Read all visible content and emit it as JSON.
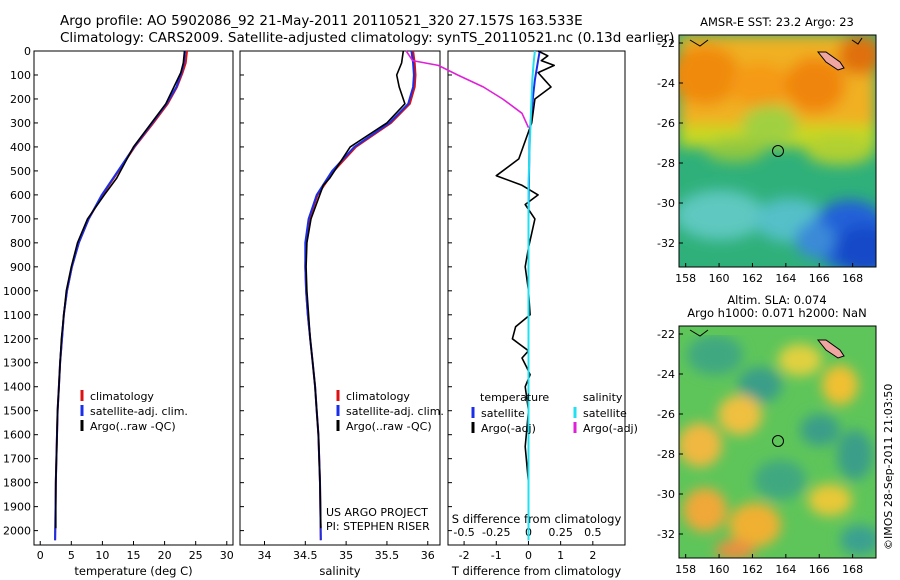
{
  "header": {
    "line1": "Argo profile: AO 5902086_92 21-May-2011 20110521_320 27.157S 163.533E",
    "line2": "Climatology: CARS2009. Satellite-adjusted climatology: synTS_20110521.nc (0.13d earlier)"
  },
  "watermark": "©IMOS 28-Sep-2011 21:03:50",
  "colors": {
    "climatology": "#dd1111",
    "satellite": "#1a2ee8",
    "argo": "#000000",
    "sat_salinity": "#22e0f0",
    "argo_salinity_adj": "#e020d8"
  },
  "chart_data": [
    {
      "type": "line",
      "name": "temperature-profile",
      "xlabel": "temperature (deg C)",
      "xlim": [
        -1,
        31
      ],
      "ylim": [
        2060,
        0
      ],
      "xticks": [
        0,
        5,
        10,
        15,
        20,
        25,
        30
      ],
      "yticks": [
        0,
        100,
        200,
        300,
        400,
        500,
        600,
        700,
        800,
        900,
        1000,
        1100,
        1200,
        1300,
        1400,
        1500,
        1600,
        1700,
        1800,
        1900,
        2000
      ],
      "legend": [
        "climatology",
        "satellite-adj. clim.",
        "Argo(..raw -QC)"
      ],
      "series": [
        {
          "name": "climatology",
          "color": "#dd1111",
          "x": [
            23.6,
            23.4,
            22.9,
            22.0,
            20.5,
            18.2,
            15.2,
            12.6,
            10.0,
            7.8,
            6.2,
            5.1,
            4.3,
            3.8,
            3.5,
            3.2,
            3.0,
            2.8,
            2.7,
            2.6,
            2.5,
            2.4
          ],
          "y": [
            0,
            50,
            90,
            150,
            220,
            300,
            400,
            500,
            600,
            700,
            800,
            900,
            1000,
            1100,
            1200,
            1300,
            1400,
            1500,
            1600,
            1700,
            1800,
            2040
          ]
        },
        {
          "name": "satellite-adj. clim.",
          "color": "#1a2ee8",
          "x": [
            23.3,
            23.1,
            22.7,
            21.9,
            20.3,
            18.0,
            15.1,
            12.5,
            9.9,
            7.8,
            6.2,
            5.1,
            4.3,
            3.8,
            3.5,
            3.2,
            3.0,
            2.8,
            2.7,
            2.6,
            2.5,
            2.4
          ],
          "y": [
            0,
            50,
            90,
            150,
            220,
            300,
            400,
            500,
            600,
            700,
            800,
            900,
            1000,
            1100,
            1200,
            1300,
            1400,
            1500,
            1600,
            1700,
            1800,
            2040
          ]
        },
        {
          "name": "Argo(..raw -QC)",
          "color": "#000000",
          "x": [
            23.2,
            23.0,
            22.6,
            21.5,
            20.2,
            17.9,
            15.0,
            12.3,
            10.3,
            7.6,
            6.0,
            5.0,
            4.2,
            3.8,
            3.4,
            3.2,
            3.0,
            2.8,
            2.7,
            2.6,
            2.5,
            2.5
          ],
          "y": [
            0,
            50,
            90,
            150,
            220,
            300,
            400,
            530,
            600,
            700,
            800,
            900,
            1000,
            1100,
            1200,
            1300,
            1400,
            1500,
            1600,
            1700,
            1800,
            1990
          ]
        }
      ]
    },
    {
      "type": "line",
      "name": "salinity-profile",
      "xlabel": "salinity",
      "xlim": [
        33.7,
        36.15
      ],
      "ylim": [
        2060,
        0
      ],
      "xticks": [
        34,
        34.5,
        35,
        35.5,
        36
      ],
      "xticklabels": [
        "34",
        "34.5",
        "35",
        "35.5",
        "36"
      ],
      "legend": [
        "climatology",
        "satellite-adj. clim.",
        "Argo(..raw -QC)"
      ],
      "annotation": [
        "US ARGO PROJECT",
        "PI: STEPHEN RISER"
      ],
      "series": [
        {
          "name": "climatology",
          "color": "#dd1111",
          "x": [
            35.82,
            35.84,
            35.85,
            35.84,
            35.78,
            35.55,
            35.12,
            34.85,
            34.65,
            34.55,
            34.51,
            34.5,
            34.51,
            34.53,
            34.56,
            34.59,
            34.62,
            34.64,
            34.66,
            34.67,
            34.68,
            34.69
          ],
          "y": [
            0,
            50,
            100,
            150,
            220,
            300,
            400,
            500,
            600,
            700,
            800,
            900,
            1000,
            1100,
            1200,
            1300,
            1400,
            1500,
            1600,
            1700,
            1800,
            2040
          ]
        },
        {
          "name": "satellite-adj. clim.",
          "color": "#1a2ee8",
          "x": [
            35.8,
            35.82,
            35.83,
            35.82,
            35.76,
            35.53,
            35.1,
            34.83,
            34.64,
            34.54,
            34.5,
            34.5,
            34.51,
            34.53,
            34.56,
            34.59,
            34.62,
            34.64,
            34.66,
            34.67,
            34.68,
            34.69
          ],
          "y": [
            0,
            50,
            100,
            150,
            220,
            300,
            400,
            500,
            600,
            700,
            800,
            900,
            1000,
            1100,
            1200,
            1300,
            1400,
            1500,
            1600,
            1700,
            1800,
            2040
          ]
        },
        {
          "name": "Argo(..raw -QC)",
          "color": "#000000",
          "x": [
            35.7,
            35.68,
            35.62,
            35.65,
            35.72,
            35.5,
            35.05,
            34.8,
            34.72,
            34.57,
            34.52,
            34.51,
            34.52,
            34.54,
            34.56,
            34.59,
            34.62,
            34.64,
            34.66,
            34.67,
            34.68,
            34.69
          ],
          "y": [
            0,
            50,
            100,
            150,
            220,
            300,
            400,
            530,
            560,
            700,
            800,
            900,
            1000,
            1100,
            1200,
            1300,
            1400,
            1500,
            1600,
            1700,
            1800,
            1990
          ]
        }
      ]
    },
    {
      "type": "line",
      "name": "difference-profile",
      "xlabel_top": "S difference from climatology",
      "xlabel": "T difference from climatology",
      "xlim": [
        -2.5,
        3.0
      ],
      "ylim": [
        2060,
        0
      ],
      "xticks_T": [
        -2,
        -1,
        0,
        1,
        2
      ],
      "xticks_S": [
        -0.5,
        -0.25,
        0,
        0.25,
        0.5
      ],
      "xticklabels_S": [
        "-0.5",
        "-0.25",
        "0",
        "0.25",
        "0.5"
      ],
      "legend_titles": [
        "temperature",
        "salinity"
      ],
      "legend": [
        "satellite",
        "Argo(-adj)",
        "satellite",
        "Argo(-adj)"
      ],
      "series": [
        {
          "name": "satellite",
          "group": "temperature",
          "color": "#1a2ee8",
          "x": [
            0.35,
            0.3,
            0.25,
            0.2,
            0.15,
            0.1,
            0.05,
            0.03,
            0.02,
            0.01,
            0.0,
            0.0,
            0.0,
            0.0,
            0.0,
            0.0,
            0.0,
            0.0
          ],
          "y": [
            0,
            40,
            80,
            120,
            180,
            250,
            320,
            400,
            500,
            600,
            700,
            800,
            1000,
            1200,
            1400,
            1600,
            1800,
            2040
          ]
        },
        {
          "name": "Argo(-adj)",
          "group": "temperature",
          "color": "#000000",
          "x": [
            0.3,
            0.6,
            0.4,
            0.8,
            0.3,
            0.5,
            0.7,
            0.2,
            0.1,
            -0.3,
            -1.0,
            -0.2,
            0.3,
            -0.1,
            0.2,
            0.1,
            0.0,
            -0.1,
            0.0,
            0.05,
            -0.4,
            -0.5,
            -0.3,
            0.0,
            -0.2,
            -0.05,
            0.05,
            -0.1,
            0.0,
            -0.1,
            0.0,
            0.0
          ],
          "y": [
            0,
            20,
            40,
            60,
            90,
            120,
            150,
            200,
            300,
            450,
            520,
            560,
            600,
            640,
            700,
            760,
            820,
            900,
            1000,
            1100,
            1150,
            1200,
            1220,
            1250,
            1280,
            1320,
            1350,
            1400,
            1500,
            1650,
            1800,
            1990
          ]
        },
        {
          "name": "satellite",
          "group": "salinity",
          "color": "#22e0f0",
          "x": [
            0.05,
            0.04,
            0.03,
            0.02,
            0.01,
            0.0,
            0.0,
            0.0,
            0.0,
            0.0,
            0.0,
            0.0
          ],
          "y": [
            0,
            50,
            120,
            250,
            400,
            550,
            700,
            900,
            1200,
            1500,
            1800,
            2040
          ]
        },
        {
          "name": "Argo(-adj)",
          "group": "salinity",
          "color": "#e020d8",
          "x": [
            -0.95,
            -0.9,
            -0.7,
            -0.55,
            -0.35,
            -0.2,
            -0.05,
            0.0
          ],
          "y": [
            0,
            40,
            60,
            100,
            150,
            200,
            260,
            320
          ]
        }
      ]
    },
    {
      "type": "heatmap",
      "name": "sst-map",
      "title": "AMSR-E SST: 23.2  Argo: 23",
      "xticks": [
        158,
        160,
        162,
        164,
        166,
        168
      ],
      "yticks": [
        -22,
        -24,
        -26,
        -28,
        -30,
        -32
      ],
      "xlim": [
        157.6,
        169.4
      ],
      "ylim": [
        -33.2,
        -21.6
      ],
      "marker": {
        "lon": 163.533,
        "lat": -27.157
      }
    },
    {
      "type": "heatmap",
      "name": "sla-map",
      "title_line1": "Altim. SLA: 0.074",
      "title_line2": "Argo h1000: 0.071 h2000: NaN",
      "xticks": [
        158,
        160,
        162,
        164,
        166,
        168
      ],
      "yticks": [
        -22,
        -24,
        -26,
        -28,
        -30,
        -32
      ],
      "xlim": [
        157.6,
        169.4
      ],
      "ylim": [
        -33.2,
        -21.6
      ],
      "marker": {
        "lon": 163.533,
        "lat": -27.157
      }
    }
  ]
}
